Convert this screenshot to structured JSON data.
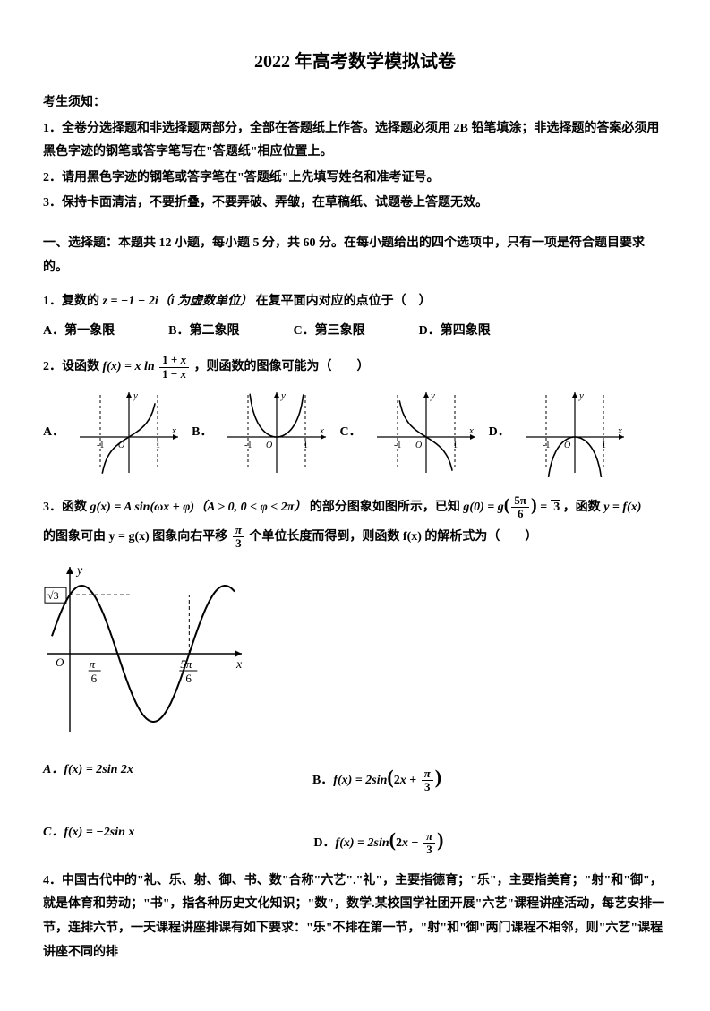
{
  "title": "2022 年高考数学模拟试卷",
  "notice_header": "考生须知：",
  "notices": [
    "1．全卷分选择题和非选择题两部分，全部在答题纸上作答。选择题必须用 2B 铅笔填涂；非选择题的答案必须用黑色字迹的钢笔或答字笔写在\"答题纸\"相应位置上。",
    "2．请用黑色字迹的钢笔或答字笔在\"答题纸\"上先填写姓名和准考证号。",
    "3．保持卡面清洁，不要折叠，不要弄破、弄皱，在草稿纸、试题卷上答题无效。"
  ],
  "section1_header": "一、选择题：本题共 12 小题，每小题 5 分，共 60 分。在每小题给出的四个选项中，只有一项是符合题目要求的。",
  "q1": {
    "stem_pre": "1．复数的 ",
    "formula": "z = −1 − 2i（i 为虚数单位）",
    "stem_post": "在复平面内对应的点位于（　）",
    "opts": {
      "A": "A．第一象限",
      "B": "B．第二象限",
      "C": "C．第三象限",
      "D": "D．第四象限"
    }
  },
  "q2": {
    "stem_pre": "2．设函数 ",
    "stem_post": "，则函数的图像可能为（　　）",
    "labels": {
      "A": "A．",
      "B": "B．",
      "C": "C．",
      "D": "D．"
    },
    "graph": {
      "axis_color": "#000000",
      "dash_color": "#000000",
      "curve_color": "#000000",
      "bg": "#ffffff",
      "xrange": [
        -1.6,
        1.6
      ],
      "yrange": [
        -1.5,
        1.5
      ],
      "asymptotes_x": [
        -1,
        1
      ],
      "tick_labels": [
        "-1",
        "1"
      ],
      "axis_labels": {
        "x": "x",
        "y": "y"
      }
    }
  },
  "q3": {
    "line1_pre": "3．函数 ",
    "line1_mid": "的部分图象如图所示，已知 ",
    "line1_post": "，函数 y = f(x)",
    "line2_pre": "的图象可由 y = g(x) 图象向右平移 ",
    "line2_post": " 个单位长度而得到，则函数 f(x) 的解析式为（　　）",
    "sine_graph": {
      "amplitude_label": "√3",
      "x_ticks": {
        "pi_over_6": "π",
        "pi_over_6_den": "6",
        "five_pi_over_6": "5π",
        "five_pi_over_6_den": "6"
      },
      "axis_labels": {
        "x": "x",
        "y": "y"
      },
      "curve_color": "#000000",
      "dash_color": "#000000",
      "axis_color": "#000000",
      "bg": "#ffffff",
      "amplitude": 1.732,
      "period_in_units": 2,
      "plot_xrange": [
        -0.3,
        2.2
      ],
      "plot_yrange": [
        -2.1,
        2.4
      ]
    },
    "opts": {
      "A": "A．f(x) = 2sin 2x",
      "B_pre": "B．",
      "C": "C．f(x) = −2sin x",
      "D_pre": "D．"
    }
  },
  "q4": {
    "text": "4．中国古代中的\"礼、乐、射、御、书、数\"合称\"六艺\".\"礼\"，主要指德育；\"乐\"，主要指美育；\"射\"和\"御\"，就是体育和劳动；\"书\"，指各种历史文化知识；\"数\"，数学.某校国学社团开展\"六艺\"课程讲座活动，每艺安排一节，连排六节，一天课程讲座排课有如下要求：\"乐\"不排在第一节，\"射\"和\"御\"两门课程不相邻，则\"六艺\"课程讲座不同的排"
  }
}
